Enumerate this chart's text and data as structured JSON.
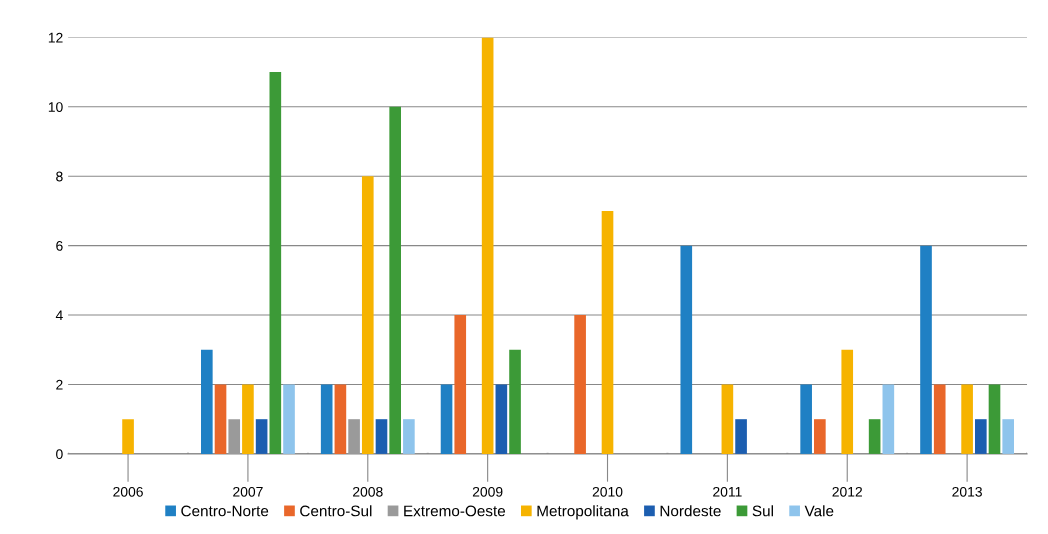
{
  "chart_data": {
    "type": "bar",
    "categories": [
      "2006",
      "2007",
      "2008",
      "2009",
      "2010",
      "2011",
      "2012",
      "2013"
    ],
    "series": [
      {
        "name": "Centro-Norte",
        "color": "#1f80c4",
        "values": [
          0,
          3,
          2,
          2,
          0,
          6,
          2,
          6
        ]
      },
      {
        "name": "Centro-Sul",
        "color": "#e9672a",
        "values": [
          0,
          2,
          2,
          4,
          4,
          0,
          1,
          2
        ]
      },
      {
        "name": "Extremo-Oeste",
        "color": "#9a9a9a",
        "values": [
          0,
          1,
          1,
          0,
          0,
          0,
          0,
          0
        ]
      },
      {
        "name": "Metropolitana",
        "color": "#f6b300",
        "values": [
          1,
          2,
          8,
          12,
          7,
          2,
          3,
          2
        ]
      },
      {
        "name": "Nordeste",
        "color": "#1c5eb0",
        "values": [
          0,
          1,
          1,
          2,
          0,
          1,
          0,
          1
        ]
      },
      {
        "name": "Sul",
        "color": "#3c9a37",
        "values": [
          0,
          11,
          10,
          3,
          0,
          0,
          1,
          2
        ]
      },
      {
        "name": "Vale",
        "color": "#8ec4ec",
        "values": [
          0,
          2,
          1,
          0,
          0,
          0,
          2,
          1
        ]
      }
    ],
    "ylim": [
      0,
      12
    ],
    "yticks": [
      0,
      2,
      4,
      6,
      8,
      10,
      12
    ],
    "grid": "y",
    "legend": "bottom"
  }
}
